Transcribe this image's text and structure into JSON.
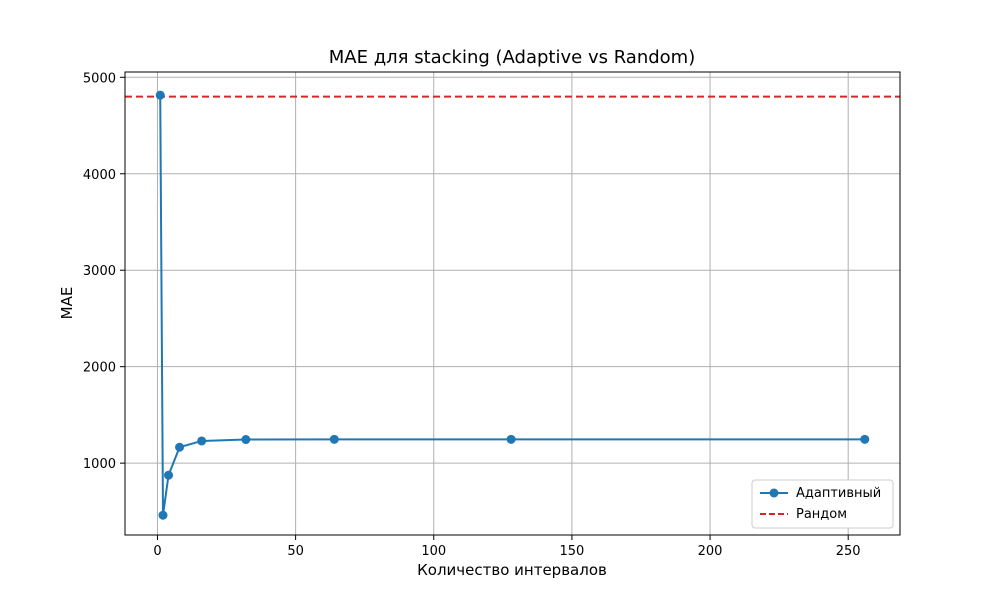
{
  "chart_data": {
    "type": "line",
    "title": "MAE для stacking (Adaptive vs Random)",
    "xlabel": "Количество интервалов",
    "ylabel": "MAE",
    "xlim": [
      -11.75,
      268.75
    ],
    "ylim": [
      255,
      5055
    ],
    "xticks": [
      0,
      50,
      100,
      150,
      200,
      250
    ],
    "yticks": [
      1000,
      2000,
      3000,
      4000,
      5000
    ],
    "grid": true,
    "legend_position": "lower-right",
    "series": [
      {
        "name": "Адаптивный",
        "style": "line-marker",
        "color": "#1f77b4",
        "x": [
          1,
          2,
          4,
          8,
          16,
          32,
          64,
          128,
          256
        ],
        "y": [
          4815,
          460,
          875,
          1165,
          1230,
          1245,
          1247,
          1247,
          1247
        ]
      },
      {
        "name": "Рандом",
        "style": "dashed-hline",
        "color": "#d62728",
        "y": 4800
      }
    ]
  }
}
